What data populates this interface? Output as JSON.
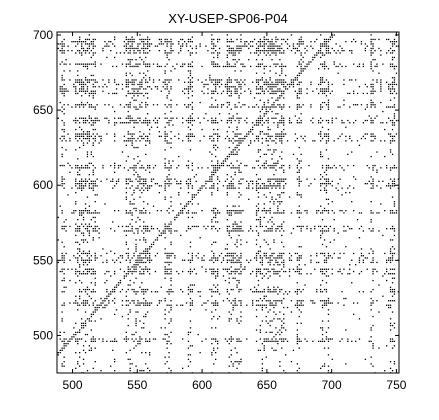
{
  "chart_data": {
    "type": "heatmap",
    "title": "XY-USEP-SP06-P04",
    "xlabel": "",
    "ylabel": "",
    "xlim": [
      488,
      752
    ],
    "ylim": [
      475,
      702
    ],
    "x_ticks": [
      500,
      550,
      600,
      650,
      700,
      750
    ],
    "y_ticks": [
      500,
      550,
      600,
      650,
      700
    ],
    "x_tick_labels": [
      "500",
      "550",
      "600",
      "650",
      "700",
      "750"
    ],
    "y_tick_labels": [
      "500",
      "550",
      "600",
      "650",
      "700"
    ],
    "grid": false,
    "legend": "none",
    "colors": {
      "background": "#ffffff",
      "marks": "#000000",
      "axis": "#000000"
    },
    "dense_row_bands": [
      [
        496,
        499
      ],
      [
        520,
        524
      ],
      [
        529,
        531
      ],
      [
        541,
        545
      ],
      [
        549,
        556
      ],
      [
        569,
        573
      ],
      [
        581,
        584
      ],
      [
        598,
        605
      ],
      [
        611,
        614
      ],
      [
        630,
        635
      ],
      [
        642,
        646
      ],
      [
        652,
        655
      ],
      [
        661,
        671
      ],
      [
        679,
        682
      ],
      [
        688,
        698
      ]
    ],
    "dense_column_bands": [
      [
        491,
        494
      ],
      [
        502,
        518
      ],
      [
        531,
        533
      ],
      [
        541,
        559
      ],
      [
        571,
        576
      ],
      [
        588,
        592
      ],
      [
        607,
        612
      ],
      [
        618,
        630
      ],
      [
        641,
        663
      ],
      [
        672,
        676
      ],
      [
        690,
        698
      ],
      [
        729,
        732
      ],
      [
        745,
        749
      ]
    ]
  }
}
